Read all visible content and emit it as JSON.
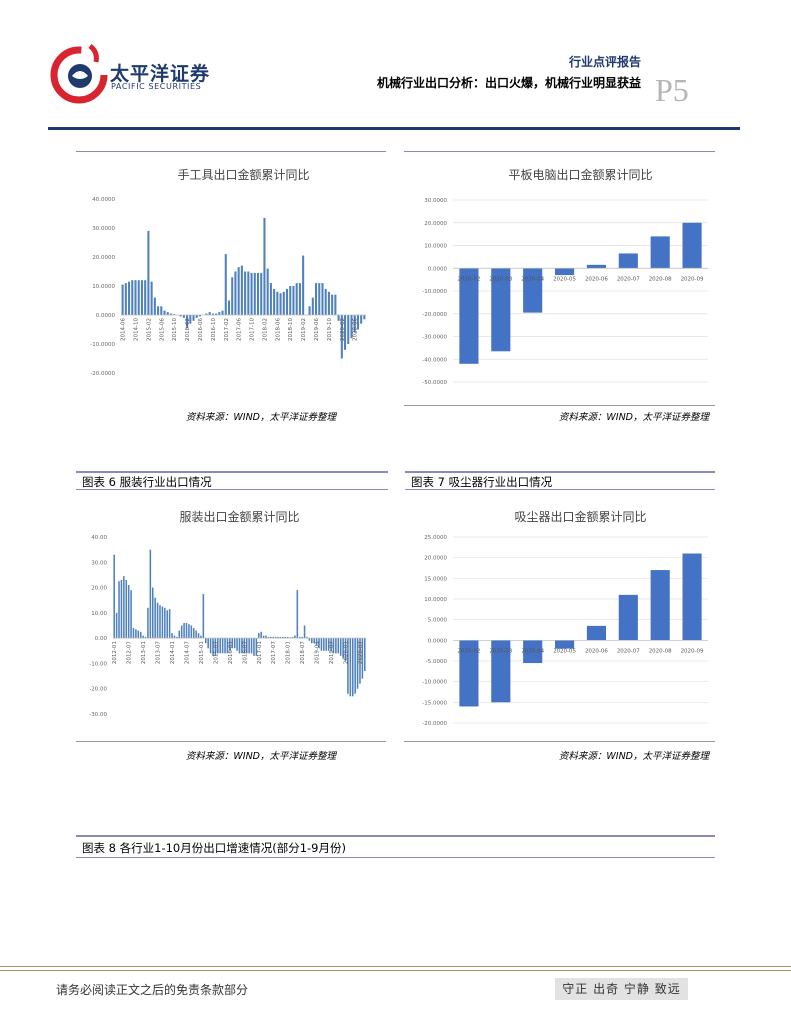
{
  "header": {
    "company": "太平洋证券",
    "company_en": "PACIFIC SECURITIES",
    "report_type": "行业点评报告",
    "report_title": "机械行业出口分析：出口火爆，机械行业明显获益",
    "page": "P5"
  },
  "captions": [
    "图表 6 服装行业出口情况",
    "图表 7 吸尘器行业出口情况",
    "图表 8 各行业1-10月份出口增速情况(部分1-9月份)"
  ],
  "sources": [
    "资料来源：WIND，太平洋证券整理",
    "资料来源：WIND，太平洋证券整理",
    "资料来源：WIND，太平洋证券整理",
    "资料来源：WIND，太平洋证券整理"
  ],
  "footer": {
    "disclaimer": "请务必阅读正文之后的免责条款部分",
    "motto": "守正 出奇 宁静 致远"
  },
  "chart_data": [
    {
      "type": "bar",
      "title": "手工具出口金额累计同比",
      "color": "#4f81bd",
      "grid": false,
      "categories": [
        "2014-06",
        null,
        null,
        null,
        "2014-10",
        null,
        null,
        null,
        "2015-02",
        null,
        null,
        null,
        "2015-06",
        null,
        null,
        null,
        "2015-10",
        null,
        null,
        null,
        "2016-02",
        null,
        null,
        null,
        "2016-06",
        null,
        null,
        null,
        "2016-10",
        null,
        null,
        null,
        "2017-02",
        null,
        null,
        null,
        "2017-06",
        null,
        null,
        null,
        "2017-10",
        null,
        null,
        null,
        "2018-02",
        null,
        null,
        null,
        "2018-06",
        null,
        null,
        null,
        "2018-10",
        null,
        null,
        null,
        "2019-02",
        null,
        null,
        null,
        "2019-06",
        null,
        null,
        null,
        "2019-10",
        null,
        null,
        null,
        "2020-02",
        null,
        null,
        null,
        "2020-06",
        null,
        null,
        null
      ],
      "values": [
        10.5,
        11,
        11.5,
        12,
        12,
        12,
        12,
        12,
        29,
        11.5,
        6,
        3,
        3,
        1.5,
        1,
        0.5,
        0.3,
        0,
        -0.5,
        -1,
        -4.5,
        -3,
        -2,
        -1,
        -0.5,
        0,
        0.5,
        1,
        0.5,
        0.5,
        1,
        1.5,
        21,
        5,
        13,
        15,
        16.5,
        17,
        15,
        15,
        14.5,
        14.5,
        14.5,
        14.5,
        33.5,
        16,
        11,
        9,
        8,
        7.5,
        8,
        9,
        10,
        10,
        11,
        11,
        20.5,
        0,
        3,
        6,
        11,
        11,
        11,
        9,
        8,
        7,
        7,
        -2,
        -15,
        -12,
        -10,
        -8,
        -6,
        -5,
        -3,
        -1.5
      ],
      "ylim": [
        -20,
        40
      ],
      "yticks": [
        {
          "value": -20,
          "label": "-20.0000"
        },
        {
          "value": -10,
          "label": "-10.0000"
        },
        {
          "value": 0,
          "label": "0.0000"
        },
        {
          "value": 10,
          "label": "10.0000"
        },
        {
          "value": 20,
          "label": "20.0000"
        },
        {
          "value": 30,
          "label": "30.0000"
        },
        {
          "value": 40,
          "label": "40.0000"
        }
      ]
    },
    {
      "type": "bar",
      "title": "平板电脑出口金额累计同比",
      "color": "#4472c4",
      "grid": true,
      "categories": [
        "2020-02",
        "2020-03",
        "2020-04",
        "2020-05",
        "2020-06",
        "2020-07",
        "2020-08",
        "2020-09"
      ],
      "values": [
        -42,
        -36.5,
        -19.5,
        -3,
        1.5,
        6.5,
        14,
        20
      ],
      "ylim": [
        -50,
        30
      ],
      "yticks": [
        {
          "value": -50,
          "label": "-50.0000"
        },
        {
          "value": -40,
          "label": "-40.0000"
        },
        {
          "value": -30,
          "label": "-30.0000"
        },
        {
          "value": -20,
          "label": "-20.0000"
        },
        {
          "value": -10,
          "label": "-10.0000"
        },
        {
          "value": 0,
          "label": "0.0000"
        },
        {
          "value": 10,
          "label": "10.0000"
        },
        {
          "value": 20,
          "label": "20.0000"
        },
        {
          "value": 30,
          "label": "30.0000"
        }
      ]
    },
    {
      "type": "bar",
      "title": "服装出口金额累计同比",
      "color": "#4f81bd",
      "grid": false,
      "categories": [
        "2012-01",
        null,
        null,
        null,
        null,
        null,
        "2012-07",
        null,
        null,
        null,
        null,
        null,
        "2013-01",
        null,
        null,
        null,
        null,
        null,
        "2013-07",
        null,
        null,
        null,
        null,
        null,
        "2014-01",
        null,
        null,
        null,
        null,
        null,
        "2014-07",
        null,
        null,
        null,
        null,
        null,
        "2015-01",
        null,
        null,
        null,
        null,
        null,
        "2015-07",
        null,
        null,
        null,
        null,
        null,
        "2016-01",
        null,
        null,
        null,
        null,
        null,
        "2016-07",
        null,
        null,
        null,
        null,
        null,
        "2017-01",
        null,
        null,
        null,
        null,
        null,
        "2017-07",
        null,
        null,
        null,
        null,
        null,
        "2018-01",
        null,
        null,
        null,
        null,
        null,
        "2018-07",
        null,
        null,
        null,
        null,
        null,
        "2019-01",
        null,
        null,
        null,
        null,
        null,
        "2019-07",
        null,
        null,
        null,
        null,
        null,
        "2020-01",
        null,
        null,
        null,
        null,
        null,
        "2020-07",
        null,
        null
      ],
      "values": [
        33,
        10,
        22.5,
        23,
        24.5,
        23,
        21,
        19,
        4,
        3.5,
        3,
        2.5,
        1,
        0.5,
        12,
        35,
        20,
        16,
        14,
        13,
        12.5,
        12,
        11,
        11.5,
        2,
        1,
        0.5,
        3,
        5,
        6,
        6,
        5.5,
        5,
        4,
        3,
        2,
        1,
        17.5,
        -2,
        -4,
        -6,
        -7,
        -7,
        -6,
        -6,
        -6,
        -6,
        -6,
        -5,
        -4,
        -4,
        -5,
        -6,
        -6,
        -6,
        -6,
        -6,
        -6,
        -7,
        -7,
        2,
        2.5,
        1,
        1,
        0.5,
        0.5,
        0.5,
        0.5,
        0.5,
        0.5,
        0.5,
        0.5,
        0.5,
        0.3,
        0.5,
        1,
        19,
        0.5,
        0.5,
        5,
        0.5,
        -1,
        -2,
        -2,
        -3,
        -4,
        -5,
        -5,
        -5,
        -5,
        -5,
        -6,
        -6,
        -6,
        -7,
        -8,
        -9,
        -22,
        -23,
        -23,
        -22,
        -20,
        -18,
        -16,
        -13
      ],
      "ylim": [
        -30,
        40
      ],
      "yticks": [
        {
          "value": -30,
          "label": "-30.00"
        },
        {
          "value": -20,
          "label": "-20.00"
        },
        {
          "value": -10,
          "label": "-10.00"
        },
        {
          "value": 0,
          "label": "0.00"
        },
        {
          "value": 10,
          "label": "10.00"
        },
        {
          "value": 20,
          "label": "20.00"
        },
        {
          "value": 30,
          "label": "30.00"
        },
        {
          "value": 40,
          "label": "40.00"
        }
      ]
    },
    {
      "type": "bar",
      "title": "吸尘器出口金额累计同比",
      "color": "#4472c4",
      "grid": true,
      "categories": [
        "2020-02",
        "2020-03",
        "2020-04",
        "2020-05",
        "2020-06",
        "2020-07",
        "2020-08",
        "2020-09"
      ],
      "values": [
        -16,
        -15,
        -5.5,
        -2,
        3.5,
        11,
        17,
        21
      ],
      "ylim": [
        -20,
        25
      ],
      "yticks": [
        {
          "value": -20,
          "label": "-20.0000"
        },
        {
          "value": -15,
          "label": "-15.0000"
        },
        {
          "value": -10,
          "label": "-10.0000"
        },
        {
          "value": -5,
          "label": "-5.0000"
        },
        {
          "value": 0,
          "label": "0.0000"
        },
        {
          "value": 5,
          "label": "5.0000"
        },
        {
          "value": 10,
          "label": "10.0000"
        },
        {
          "value": 15,
          "label": "15.0000"
        },
        {
          "value": 20,
          "label": "20.0000"
        },
        {
          "value": 25,
          "label": "25.0000"
        }
      ]
    }
  ]
}
